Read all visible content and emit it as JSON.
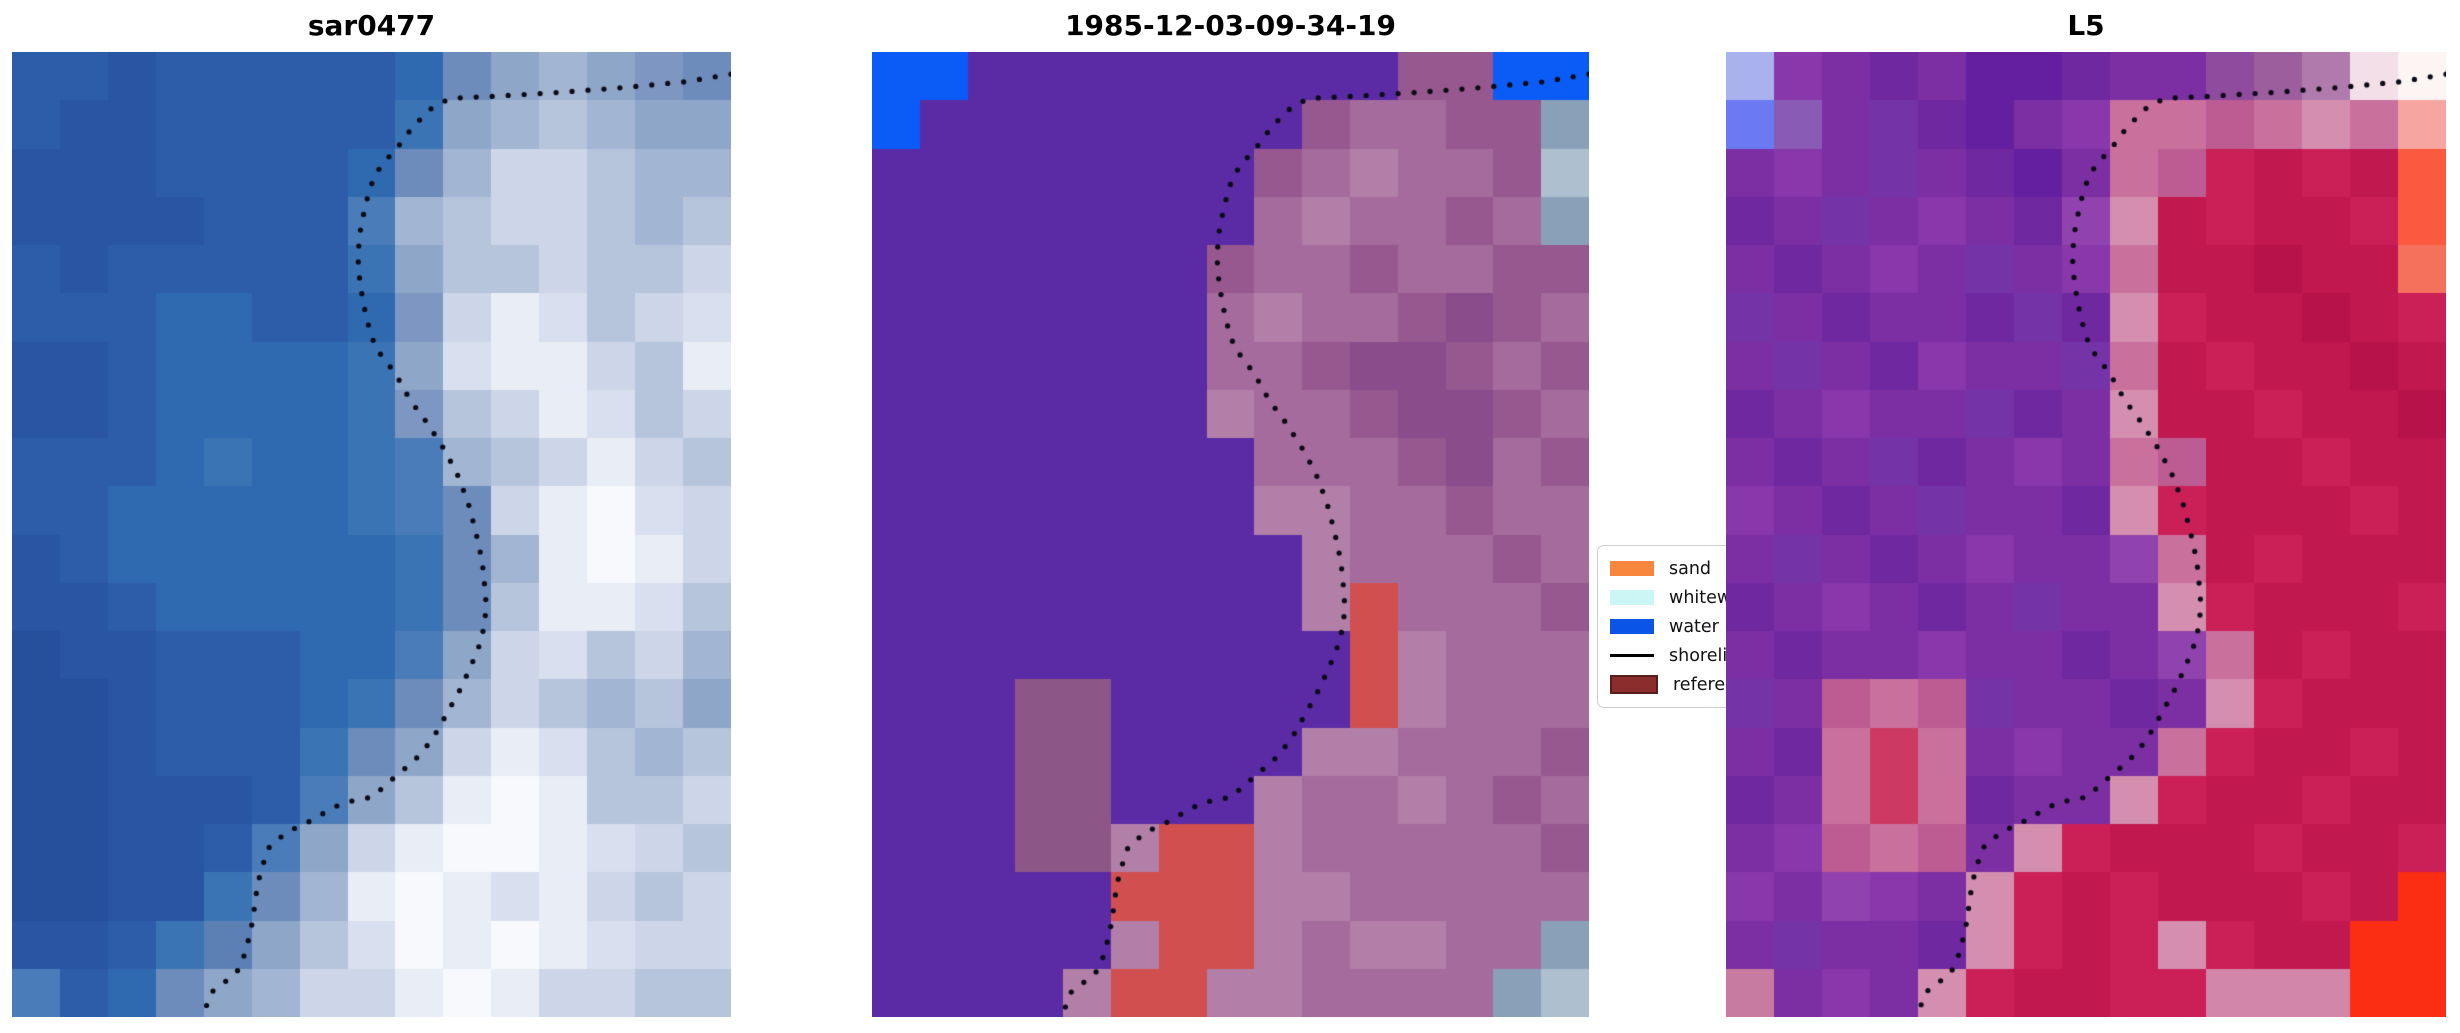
{
  "chart_data": {
    "type": "heatmap",
    "note": "Three co-registered raster image panels (satellite shoreline mapping figure) sharing one dotted shoreline overlay; pixels given as 15x20 hex-color grids read off the screenshot",
    "panels": [
      {
        "id": "sar",
        "title": "sar0477",
        "pixels": [
          "#2d5ca9 #2d5ca9 #2a55a3 #2d5ca9 #2d5ca9 #2d5ca9 #2d5ca9 #2d5ca9 #2f6ab0 #6d8cbb #8ea6c8 #a2b5d2 #8ea6c8 #7d97c2 #6d8cbb",
          "#2d5ca9 #2a55a3 #2a55a3 #2d5ca9 #2d5ca9 #2d5ca9 #2d5ca9 #2d5ca9 #3b74b4 #8ea6c8 #a2b5d2 #b6c4dc #a2b5d2 #8ea6c8 #8ea6c8",
          "#2a55a3 #2a55a3 #2a55a3 #2d5ca9 #2d5ca9 #2d5ca9 #2d5ca9 #2f6ab0 #6d8cbb #a2b5d2 #cdd6e8 #cdd6e8 #b6c4dc #a2b5d2 #a2b5d2",
          "#2a55a3 #2a55a3 #2a55a3 #2a55a3 #2d5ca9 #2d5ca9 #2d5ca9 #4a7cb9 #a2b5d2 #b6c4dc #cdd6e8 #cdd6e8 #b6c4dc #a2b5d2 #b6c4dc",
          "#2d5ca9 #2a55a3 #2d5ca9 #2d5ca9 #2d5ca9 #2d5ca9 #2d5ca9 #3b74b4 #8ea6c8 #b6c4dc #b6c4dc #cdd6e8 #b6c4dc #b6c4dc #cdd6e8",
          "#2d5ca9 #2d5ca9 #2d5ca9 #2f6ab0 #2f6ab0 #2d5ca9 #2d5ca9 #2f6ab0 #7d97c2 #cdd6e8 #e9edf5 #d8dfee #b6c4dc #cdd6e8 #d8dfee",
          "#2a55a3 #2a55a3 #2d5ca9 #2f6ab0 #2f6ab0 #2f6ab0 #2f6ab0 #3b74b4 #8ea6c8 #d8dfee #e9edf5 #e9edf5 #cdd6e8 #b6c4dc #e9edf5",
          "#2a55a3 #2a55a3 #2d5ca9 #2f6ab0 #2f6ab0 #2f6ab0 #2f6ab0 #3b74b4 #7d97c2 #b6c4dc #cdd6e8 #e9edf5 #d8dfee #b6c4dc #cdd6e8",
          "#2d5ca9 #2d5ca9 #2d5ca9 #2f6ab0 #3b74b4 #2f6ab0 #2f6ab0 #3b74b4 #4a7cb9 #a2b5d2 #b6c4dc #cdd6e8 #e9edf5 #cdd6e8 #b6c4dc",
          "#2d5ca9 #2d5ca9 #2f6ab0 #2f6ab0 #2f6ab0 #2f6ab0 #2f6ab0 #3b74b4 #4a7cb9 #6d8cbb #cdd6e8 #e9edf5 #f7f9fc #d8dfee #cdd6e8",
          "#2a55a3 #2d5ca9 #2f6ab0 #2f6ab0 #2f6ab0 #2f6ab0 #2f6ab0 #2f6ab0 #3b74b4 #6d8cbb #a2b5d2 #e9edf5 #f7f9fc #e9edf5 #cdd6e8",
          "#2a55a3 #2a55a3 #2d5ca9 #2f6ab0 #2f6ab0 #2f6ab0 #2f6ab0 #2f6ab0 #3b74b4 #6d8cbb #b6c4dc #e9edf5 #e9edf5 #d8dfee #b6c4dc",
          "#27509c #2a55a3 #2a55a3 #2d5ca9 #2d5ca9 #2d5ca9 #2f6ab0 #2f6ab0 #4a7cb9 #8ea6c8 #cdd6e8 #d8dfee #b6c4dc #cdd6e8 #a2b5d2",
          "#27509c #27509c #2a55a3 #2d5ca9 #2d5ca9 #2d5ca9 #2f6ab0 #3b74b4 #6d8cbb #a2b5d2 #cdd6e8 #b6c4dc #a2b5d2 #b6c4dc #8ea6c8",
          "#27509c #27509c #2a55a3 #2d5ca9 #2d5ca9 #2d5ca9 #3b74b4 #6d8cbb #8ea6c8 #cdd6e8 #e9edf5 #d8dfee #b6c4dc #a2b5d2 #b6c4dc",
          "#27509c #27509c #2a55a3 #2a55a3 #2a55a3 #2d5ca9 #4a7cb9 #8ea6c8 #b6c4dc #e9edf5 #f7f9fc #e9edf5 #b6c4dc #b6c4dc #cdd6e8",
          "#27509c #27509c #2a55a3 #2a55a3 #2d5ca9 #4a7cb9 #8ea6c8 #cdd6e8 #e9edf5 #f7f9fc #f7f9fc #e9edf5 #d8dfee #cdd6e8 #b6c4dc",
          "#27509c #27509c #2a55a3 #2a55a3 #3b74b4 #6d8cbb #a2b5d2 #e9edf5 #f7f9fc #e9edf5 #d8dfee #e9edf5 #cdd6e8 #b6c4dc #cdd6e8",
          "#2a55a3 #2a55a3 #2d5ca9 #3b74b4 #5c80b4 #8ea6c8 #b6c4dc #d8dfee #f7f9fc #e9edf5 #f7f9fc #e9edf5 #d8dfee #cdd6e8 #cdd6e8",
          "#4a7cb9 #2d5ca9 #2f6ab0 #6d8cbb #8ea6c8 #a2b5d2 #cdd6e8 #cdd6e8 #e9edf5 #f7f9fc #e9edf5 #cdd6e8 #cdd6e8 #b6c4dc #b6c4dc"
        ]
      },
      {
        "id": "classified",
        "title": "1985-12-03-09-34-19",
        "pixels": [
          "#0b5cf7 #0b5cf7 #5a2ba4 #5a2ba4 #5a2ba4 #5a2ba4 #5a2ba4 #5a2ba4 #5a2ba4 #5a2ba4 #5a2ba4 #96588f #96588f #0b5cf7 #0b5cf7",
          "#0b5cf7 #5a2ba4 #5a2ba4 #5a2ba4 #5a2ba4 #5a2ba4 #5a2ba4 #5a2ba4 #5a2ba4 #96588f #a46b9c #a46b9c #96588f #96588f #8aa0b8",
          "#5a2ba4 #5a2ba4 #5a2ba4 #5a2ba4 #5a2ba4 #5a2ba4 #5a2ba4 #5a2ba4 #96588f #a46b9c #b27fa8 #a46b9c #a46b9c #96588f #aebfcf",
          "#5a2ba4 #5a2ba4 #5a2ba4 #5a2ba4 #5a2ba4 #5a2ba4 #5a2ba4 #5a2ba4 #a46b9c #b27fa8 #a46b9c #a46b9c #96588f #a46b9c #8aa0b8",
          "#5a2ba4 #5a2ba4 #5a2ba4 #5a2ba4 #5a2ba4 #5a2ba4 #5a2ba4 #96588f #a46b9c #a46b9c #96588f #a46b9c #a46b9c #96588f #96588f",
          "#5a2ba4 #5a2ba4 #5a2ba4 #5a2ba4 #5a2ba4 #5a2ba4 #5a2ba4 #a46b9c #b27fa8 #a46b9c #a46b9c #96588f #8a4c8a #96588f #a46b9c",
          "#5a2ba4 #5a2ba4 #5a2ba4 #5a2ba4 #5a2ba4 #5a2ba4 #5a2ba4 #a46b9c #a46b9c #96588f #8a4c8a #8a4c8a #96588f #a46b9c #96588f",
          "#5a2ba4 #5a2ba4 #5a2ba4 #5a2ba4 #5a2ba4 #5a2ba4 #5a2ba4 #b27fa8 #a46b9c #a46b9c #96588f #8a4c8a #8a4c8a #96588f #a46b9c",
          "#5a2ba4 #5a2ba4 #5a2ba4 #5a2ba4 #5a2ba4 #5a2ba4 #5a2ba4 #5a2ba4 #a46b9c #a46b9c #a46b9c #96588f #8a4c8a #a46b9c #96588f",
          "#5a2ba4 #5a2ba4 #5a2ba4 #5a2ba4 #5a2ba4 #5a2ba4 #5a2ba4 #5a2ba4 #b27fa8 #b27fa8 #a46b9c #a46b9c #96588f #a46b9c #a46b9c",
          "#5a2ba4 #5a2ba4 #5a2ba4 #5a2ba4 #5a2ba4 #5a2ba4 #5a2ba4 #5a2ba4 #5a2ba4 #b27fa8 #a46b9c #a46b9c #a46b9c #96588f #a46b9c",
          "#5a2ba4 #5a2ba4 #5a2ba4 #5a2ba4 #5a2ba4 #5a2ba4 #5a2ba4 #5a2ba4 #5a2ba4 #b27fa8 #d14f4e #a46b9c #a46b9c #a46b9c #96588f",
          "#5a2ba4 #5a2ba4 #5a2ba4 #5a2ba4 #5a2ba4 #5a2ba4 #5a2ba4 #5a2ba4 #5a2ba4 #5a2ba4 #d14f4e #b27fa8 #a46b9c #a46b9c #a46b9c",
          "#5a2ba4 #5a2ba4 #5a2ba4 #8c5786 #8c5786 #5a2ba4 #5a2ba4 #5a2ba4 #5a2ba4 #5a2ba4 #d14f4e #b27fa8 #a46b9c #a46b9c #a46b9c",
          "#5a2ba4 #5a2ba4 #5a2ba4 #8c5786 #8c5786 #5a2ba4 #5a2ba4 #5a2ba4 #5a2ba4 #b27fa8 #b27fa8 #a46b9c #a46b9c #a46b9c #96588f",
          "#5a2ba4 #5a2ba4 #5a2ba4 #8c5786 #8c5786 #5a2ba4 #5a2ba4 #5a2ba4 #b27fa8 #a46b9c #a46b9c #b27fa8 #a46b9c #96588f #a46b9c",
          "#5a2ba4 #5a2ba4 #5a2ba4 #8c5786 #8c5786 #b27fa8 #d14f4e #d14f4e #b27fa8 #a46b9c #a46b9c #a46b9c #a46b9c #a46b9c #96588f",
          "#5a2ba4 #5a2ba4 #5a2ba4 #5a2ba4 #5a2ba4 #d14f4e #d14f4e #d14f4e #b27fa8 #b27fa8 #a46b9c #a46b9c #a46b9c #a46b9c #a46b9c",
          "#5a2ba4 #5a2ba4 #5a2ba4 #5a2ba4 #5a2ba4 #b27fa8 #d14f4e #d14f4e #b27fa8 #a46b9c #b27fa8 #b27fa8 #a46b9c #a46b9c #8aa0b8",
          "#5a2ba4 #5a2ba4 #5a2ba4 #5a2ba4 #b27fa8 #d14f4e #d14f4e #b27fa8 #b27fa8 #a46b9c #a46b9c #a46b9c #a46b9c #8aa0b8 #aebfcf"
        ]
      },
      {
        "id": "l5",
        "title": "L5",
        "pixels": [
          "#aab2ee #8838aa #7b2fa2 #6f28a0 #7b2fa2 #641fa0 #641fa0 #6f28a0 #7b2fa2 #7b2fa2 #8f4b9e #9d5e9e #b07bac #f2dfe8 #fdf4f4",
          "#6b79f2 #8a5bb5 #7b2fa2 #7434a8 #6f28a0 #641fa0 #7b2fa2 #8838aa #c9709d #c9709d #bd5c92 #c9709d #d48fae #c9709d #f7a5a0",
          "#7b2fa2 #8838aa #7b2fa2 #7434a8 #7b2fa2 #6f28a0 #641fa0 #7b2fa2 #c9709d #bd5c92 #cb1f58 #c21850 #cb1f58 #c21850 #fb5a3e",
          "#6f28a0 #7b2fa2 #7434a8 #7b2fa2 #8838aa #7b2fa2 #6f28a0 #9043ae #d48fae #c21850 #cb1f58 #c21850 #c21850 #cb1f58 #fb5a3e",
          "#7b2fa2 #6f28a0 #7b2fa2 #8838aa #7b2fa2 #7434a8 #7b2fa2 #8838aa #c9709d #c21850 #c21850 #b8124a #c21850 #c21850 #f4715c",
          "#7434a8 #7b2fa2 #6f28a0 #7b2fa2 #7b2fa2 #6f28a0 #7434a8 #6f28a0 #d48fae #cb1f58 #c21850 #c21850 #b8124a #c21850 #cb1f58",
          "#7b2fa2 #7434a8 #7b2fa2 #6f28a0 #8838aa #7b2fa2 #7b2fa2 #7434a8 #c9709d #c21850 #cb1f58 #c21850 #c21850 #b8124a #c21850",
          "#6f28a0 #7b2fa2 #8838aa #7b2fa2 #7b2fa2 #7434a8 #6f28a0 #7b2fa2 #d48fae #c21850 #c21850 #cb1f58 #c21850 #c21850 #b8124a",
          "#7b2fa2 #6f28a0 #7b2fa2 #7434a8 #6f28a0 #7b2fa2 #8838aa #7b2fa2 #c9709d #bd5c92 #c21850 #c21850 #cb1f58 #c21850 #c21850",
          "#8838aa #7b2fa2 #6f28a0 #7b2fa2 #7434a8 #7b2fa2 #7b2fa2 #6f28a0 #d48fae #cb1f58 #c21850 #c21850 #c21850 #cb1f58 #c21850",
          "#7b2fa2 #7434a8 #7b2fa2 #6f28a0 #7b2fa2 #8838aa #7b2fa2 #7b2fa2 #9043ae #c9709d #c21850 #cb1f58 #c21850 #c21850 #c21850",
          "#6f28a0 #7b2fa2 #8838aa #7b2fa2 #6f28a0 #7b2fa2 #7434a8 #7b2fa2 #7b2fa2 #d48fae #cb1f58 #c21850 #c21850 #c21850 #cb1f58",
          "#7b2fa2 #6f28a0 #7b2fa2 #7b2fa2 #8838aa #7b2fa2 #7b2fa2 #6f28a0 #7b2fa2 #9043ae #c9709d #c21850 #cb1f58 #c21850 #c21850",
          "#7434a8 #7b2fa2 #bd5c92 #c9709d #bd5c92 #7434a8 #7b2fa2 #7b2fa2 #6f28a0 #7b2fa2 #d48fae #cb1f58 #c21850 #c21850 #c21850",
          "#7b2fa2 #6f28a0 #c9709d #cc3a62 #c9709d #7b2fa2 #8838aa #7b2fa2 #7b2fa2 #c9709d #cb1f58 #c21850 #c21850 #cb1f58 #c21850",
          "#6f28a0 #7b2fa2 #c9709d #cc3a62 #c9709d #6f28a0 #7b2fa2 #7b2fa2 #d48fae #cb1f58 #c21850 #c21850 #cb1f58 #c21850 #c21850",
          "#7b2fa2 #8838aa #bd5c92 #c9709d #bd5c92 #7b2fa2 #d48fae #cb1f58 #c21850 #c21850 #c21850 #cb1f58 #c21850 #c21850 #cb1f58",
          "#8838aa #7b2fa2 #9043ae #8838aa #7b2fa2 #d48fae #cb1f58 #c21850 #cb1f58 #c21850 #c21850 #c21850 #cb1f58 #c21850 #fb2d12",
          "#7b2fa2 #7434a8 #7b2fa2 #7b2fa2 #6f28a0 #d48fae #cb1f58 #c21850 #cb1f58 #d48fae #cb1f58 #c21850 #c21850 #fb2d12 #fb2d12",
          "#c87ba0 #7b2fa2 #8838aa #7b2fa2 #d48fae #cb1f58 #c21850 #c21850 #cb1f58 #cb1f58 #d286a8 #d286a8 #d286a8 #fb2d12 #fb2d12"
        ]
      }
    ],
    "shoreline": {
      "color": "#0b0b16",
      "dot_radius": 2.6,
      "dot_spacing": 16,
      "points_norm": [
        [
          1.0,
          0.023
        ],
        [
          0.935,
          0.031
        ],
        [
          0.848,
          0.037
        ],
        [
          0.758,
          0.042
        ],
        [
          0.668,
          0.046
        ],
        [
          0.609,
          0.048
        ],
        [
          0.584,
          0.058
        ],
        [
          0.558,
          0.077
        ],
        [
          0.537,
          0.098
        ],
        [
          0.512,
          0.119
        ],
        [
          0.498,
          0.14
        ],
        [
          0.49,
          0.164
        ],
        [
          0.484,
          0.187
        ],
        [
          0.481,
          0.212
        ],
        [
          0.484,
          0.24
        ],
        [
          0.49,
          0.265
        ],
        [
          0.497,
          0.287
        ],
        [
          0.506,
          0.307
        ],
        [
          0.523,
          0.323
        ],
        [
          0.536,
          0.337
        ],
        [
          0.554,
          0.361
        ],
        [
          0.576,
          0.383
        ],
        [
          0.598,
          0.408
        ],
        [
          0.618,
          0.435
        ],
        [
          0.634,
          0.466
        ],
        [
          0.645,
          0.497
        ],
        [
          0.654,
          0.528
        ],
        [
          0.659,
          0.565
        ],
        [
          0.658,
          0.591
        ],
        [
          0.651,
          0.613
        ],
        [
          0.638,
          0.637
        ],
        [
          0.623,
          0.661
        ],
        [
          0.606,
          0.684
        ],
        [
          0.584,
          0.713
        ],
        [
          0.56,
          0.734
        ],
        [
          0.533,
          0.751
        ],
        [
          0.501,
          0.772
        ],
        [
          0.46,
          0.778
        ],
        [
          0.433,
          0.789
        ],
        [
          0.412,
          0.798
        ],
        [
          0.389,
          0.806
        ],
        [
          0.363,
          0.819
        ],
        [
          0.355,
          0.827
        ],
        [
          0.348,
          0.845
        ],
        [
          0.342,
          0.861
        ],
        [
          0.338,
          0.881
        ],
        [
          0.335,
          0.899
        ],
        [
          0.33,
          0.917
        ],
        [
          0.321,
          0.941
        ],
        [
          0.313,
          0.953
        ],
        [
          0.299,
          0.962
        ],
        [
          0.278,
          0.974
        ],
        [
          0.268,
          0.993
        ],
        [
          0.261,
          1.0
        ]
      ]
    },
    "legend": {
      "entries": [
        {
          "label": "sand",
          "type": "patch",
          "color": "#f8873d"
        },
        {
          "label": "whitewater",
          "type": "patch",
          "color": "#ccf6f6"
        },
        {
          "label": "water",
          "type": "patch",
          "color": "#0b54e8"
        },
        {
          "label": "shoreline",
          "type": "line",
          "color": "#000000"
        },
        {
          "label": "reference shoreline",
          "type": "patch",
          "color": "#8c2d2d",
          "border": "#571c1c"
        }
      ]
    }
  }
}
